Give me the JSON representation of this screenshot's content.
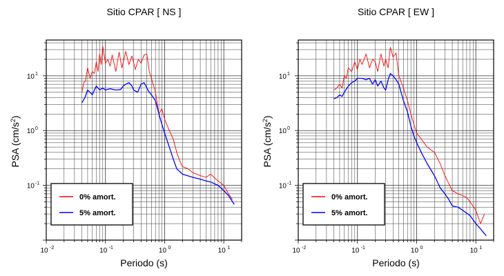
{
  "chart_data": [
    {
      "type": "line",
      "title": "Sitio CPAR [ NS ]",
      "xlabel": "Periodo (s)",
      "ylabel_main": "PSA (cm/s",
      "ylabel_sup": "2",
      "ylabel_end": ")",
      "x_scale": "log",
      "y_scale": "log",
      "xlim": [
        0.01,
        20
      ],
      "ylim": [
        0.01,
        45
      ],
      "grid": true,
      "legend_position": "bottom-left",
      "x_ticks": [
        {
          "base": "10",
          "exp": "-2"
        },
        {
          "base": "10",
          "exp": "-1"
        },
        {
          "base": "10",
          "exp": "0"
        },
        {
          "base": "10",
          "exp": "1"
        }
      ],
      "y_ticks": [
        {
          "base": "10",
          "exp": "-1"
        },
        {
          "base": "10",
          "exp": "0"
        },
        {
          "base": "10",
          "exp": "1"
        }
      ],
      "series": [
        {
          "name": "0% amort.",
          "color": "#ff0000",
          "x": [
            0.04,
            0.043,
            0.046,
            0.05,
            0.055,
            0.06,
            0.065,
            0.07,
            0.075,
            0.08,
            0.085,
            0.09,
            0.1,
            0.11,
            0.12,
            0.13,
            0.15,
            0.17,
            0.19,
            0.22,
            0.25,
            0.28,
            0.32,
            0.36,
            0.4,
            0.45,
            0.5,
            0.55,
            0.6,
            0.7,
            0.8,
            0.9,
            1.0,
            1.2,
            1.4,
            1.6,
            1.8,
            2.0,
            2.5,
            3.0,
            4.0,
            5.0,
            6.0,
            8.0,
            10.0,
            12.0,
            14.0
          ],
          "y": [
            5.0,
            7.5,
            8.0,
            14.0,
            9.0,
            12.0,
            11.0,
            18.0,
            12.0,
            25.0,
            16.0,
            35.0,
            17.0,
            20.0,
            15.0,
            24.0,
            12.0,
            27.0,
            14.0,
            28.0,
            16.0,
            23.0,
            13.0,
            20.0,
            17.0,
            24.0,
            25.0,
            12.0,
            9.0,
            5.0,
            2.0,
            2.5,
            1.6,
            1.0,
            0.7,
            0.4,
            0.28,
            0.22,
            0.2,
            0.17,
            0.15,
            0.14,
            0.16,
            0.12,
            0.1,
            0.07,
            0.055
          ]
        },
        {
          "name": "5% amort.",
          "color": "#0000ff",
          "x": [
            0.04,
            0.045,
            0.05,
            0.055,
            0.06,
            0.065,
            0.07,
            0.08,
            0.09,
            0.1,
            0.12,
            0.15,
            0.18,
            0.2,
            0.22,
            0.25,
            0.28,
            0.3,
            0.35,
            0.4,
            0.45,
            0.5,
            0.55,
            0.6,
            0.7,
            0.8,
            0.9,
            1.0,
            1.2,
            1.4,
            1.6,
            2.0,
            3.0,
            4.0,
            5.0,
            6.0,
            8.0,
            10.0,
            12.0,
            15.0
          ],
          "y": [
            3.2,
            4.0,
            5.5,
            5.0,
            4.5,
            5.5,
            6.5,
            5.5,
            6.0,
            5.5,
            5.8,
            5.5,
            5.6,
            6.5,
            7.0,
            7.5,
            6.5,
            5.5,
            5.0,
            7.0,
            7.5,
            6.0,
            5.0,
            4.5,
            3.5,
            2.0,
            1.3,
            0.9,
            0.5,
            0.3,
            0.2,
            0.16,
            0.14,
            0.13,
            0.12,
            0.115,
            0.1,
            0.08,
            0.065,
            0.045
          ]
        }
      ]
    },
    {
      "type": "line",
      "title": "Sitio CPAR [ EW ]",
      "xlabel": "Periodo (s)",
      "ylabel_main": "PSA (cm/s",
      "ylabel_sup": "2",
      "ylabel_end": ")",
      "x_scale": "log",
      "y_scale": "log",
      "xlim": [
        0.01,
        20
      ],
      "ylim": [
        0.01,
        45
      ],
      "grid": true,
      "legend_position": "bottom-left",
      "x_ticks": [
        {
          "base": "10",
          "exp": "-2"
        },
        {
          "base": "10",
          "exp": "-1"
        },
        {
          "base": "10",
          "exp": "0"
        },
        {
          "base": "10",
          "exp": "1"
        }
      ],
      "y_ticks": [
        {
          "base": "10",
          "exp": "-1"
        },
        {
          "base": "10",
          "exp": "0"
        },
        {
          "base": "10",
          "exp": "1"
        }
      ],
      "series": [
        {
          "name": "0% amort.",
          "color": "#ff0000",
          "x": [
            0.04,
            0.045,
            0.05,
            0.055,
            0.06,
            0.065,
            0.07,
            0.08,
            0.09,
            0.1,
            0.11,
            0.12,
            0.14,
            0.16,
            0.18,
            0.2,
            0.22,
            0.25,
            0.28,
            0.3,
            0.33,
            0.36,
            0.4,
            0.45,
            0.5,
            0.6,
            0.7,
            0.8,
            0.9,
            1.0,
            1.2,
            1.5,
            2.0,
            2.5,
            3.0,
            4.0,
            5.0,
            6.0,
            7.0,
            8.0,
            10.0,
            12.0,
            14.0
          ],
          "y": [
            5.5,
            6.0,
            7.0,
            6.0,
            10.0,
            9.0,
            14.0,
            12.0,
            18.0,
            13.0,
            20.0,
            16.0,
            25.0,
            14.0,
            20.0,
            18.0,
            12.0,
            25.0,
            15.0,
            20.0,
            14.0,
            33.0,
            22.0,
            26.0,
            10.0,
            6.0,
            3.5,
            2.0,
            1.3,
            0.9,
            0.7,
            0.5,
            0.4,
            0.25,
            0.15,
            0.08,
            0.07,
            0.065,
            0.06,
            0.05,
            0.035,
            0.02,
            0.03
          ]
        },
        {
          "name": "5% amort.",
          "color": "#0000ff",
          "x": [
            0.04,
            0.045,
            0.05,
            0.055,
            0.06,
            0.07,
            0.08,
            0.09,
            0.1,
            0.12,
            0.14,
            0.16,
            0.18,
            0.2,
            0.22,
            0.25,
            0.28,
            0.3,
            0.33,
            0.36,
            0.4,
            0.45,
            0.5,
            0.6,
            0.7,
            0.8,
            0.9,
            1.0,
            1.2,
            1.5,
            2.0,
            2.5,
            3.0,
            3.5,
            4.0,
            5.0,
            6.0,
            8.0,
            10.0,
            12.0,
            15.0
          ],
          "y": [
            3.8,
            4.0,
            4.5,
            4.2,
            5.0,
            6.5,
            7.5,
            8.0,
            9.0,
            9.0,
            8.5,
            9.0,
            7.0,
            8.5,
            6.5,
            8.0,
            6.0,
            5.5,
            8.5,
            11.0,
            10.0,
            8.5,
            7.0,
            3.5,
            2.2,
            1.2,
            0.8,
            0.6,
            0.4,
            0.25,
            0.15,
            0.09,
            0.07,
            0.055,
            0.042,
            0.04,
            0.035,
            0.028,
            0.02,
            0.016,
            0.012
          ]
        }
      ]
    }
  ]
}
